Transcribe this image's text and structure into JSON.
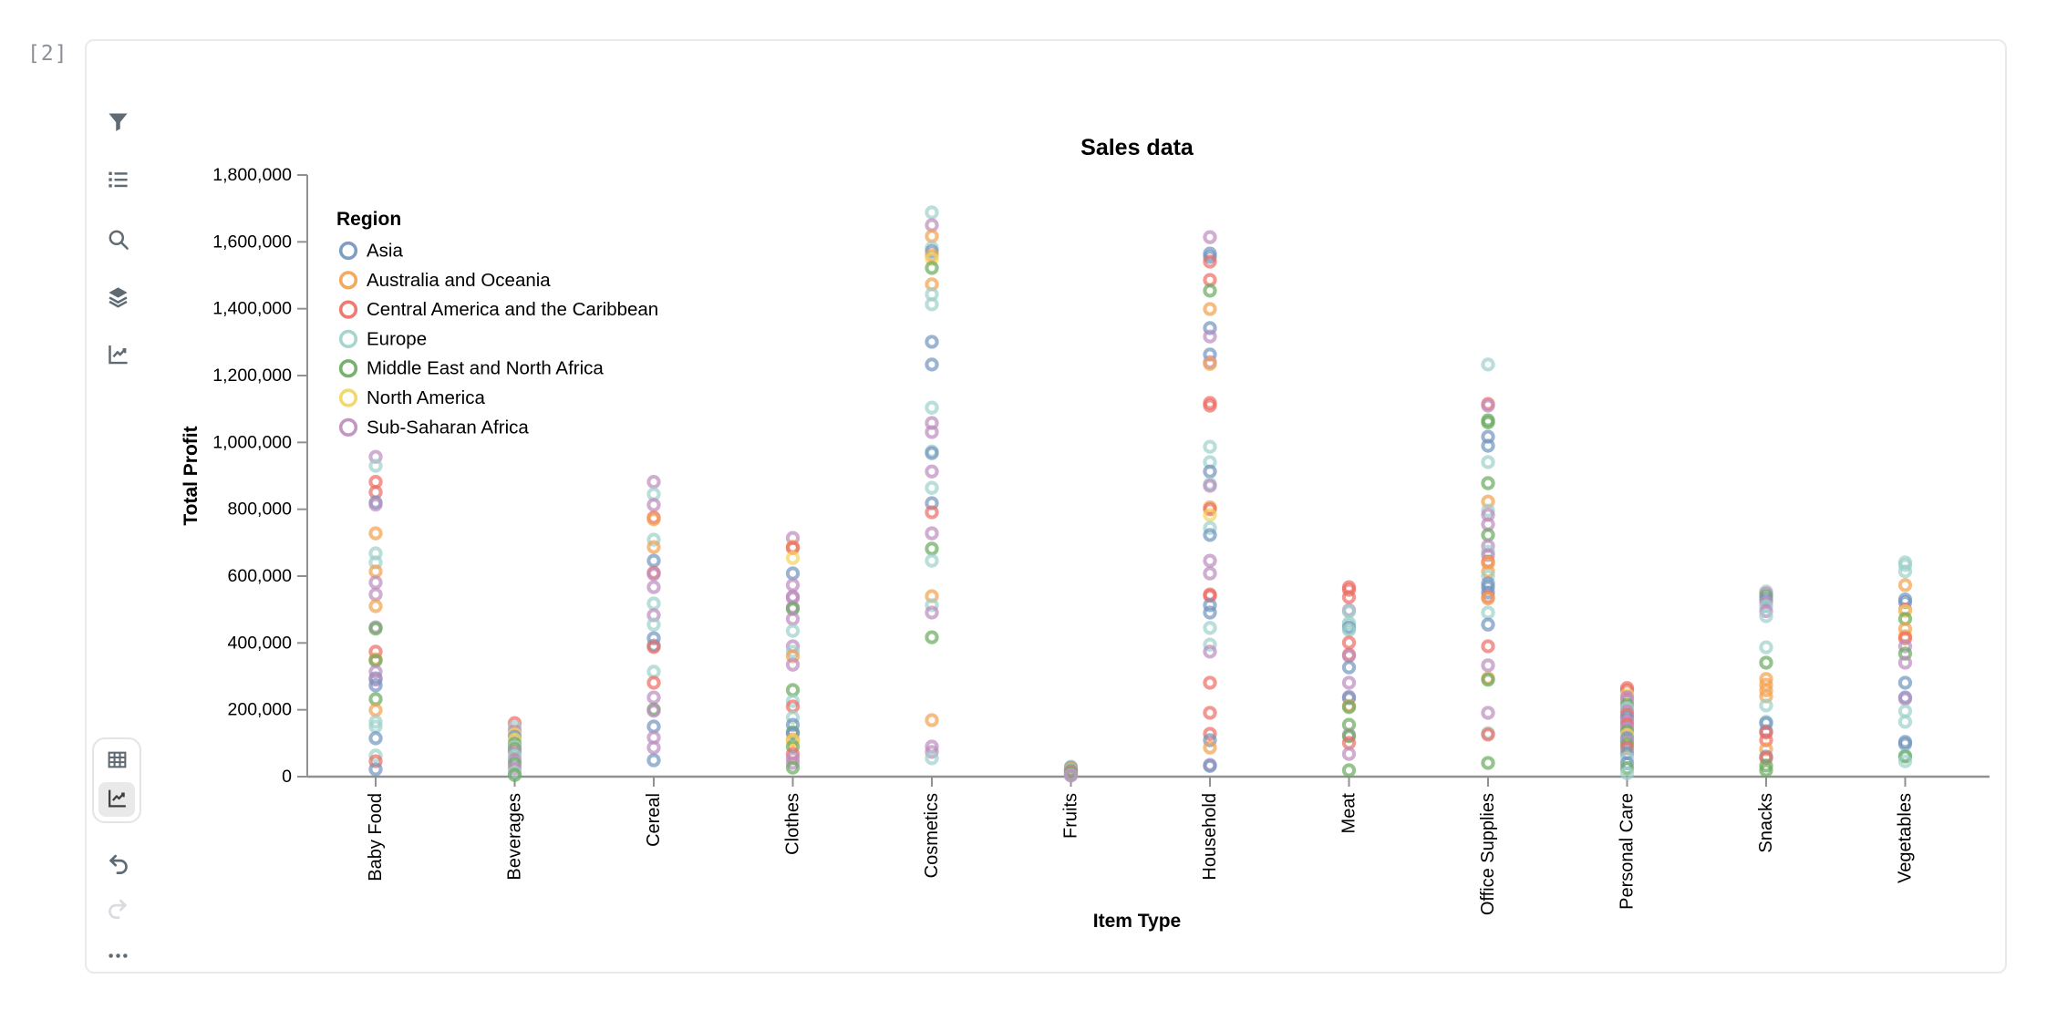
{
  "cell_label": "[2]",
  "colors": {
    "icon": "#5f6a72",
    "icon_disabled": "#d9dbde",
    "panel_border": "#e9eaec",
    "axis_line": "#919191",
    "text": "#000000",
    "selected_toggle_bg": "#e9e9ea"
  },
  "sidebar": {
    "top_icons": [
      {
        "name": "filter"
      },
      {
        "name": "field-list"
      },
      {
        "name": "search"
      },
      {
        "name": "layers"
      },
      {
        "name": "line-chart"
      }
    ],
    "view_toggle": [
      {
        "name": "table-view",
        "selected": false
      },
      {
        "name": "chart-view",
        "selected": true
      }
    ],
    "history": [
      {
        "name": "undo",
        "enabled": true
      },
      {
        "name": "redo",
        "enabled": false
      }
    ],
    "more": {
      "name": "more-options"
    }
  },
  "chart_data": {
    "type": "scatter",
    "title": "Sales data",
    "xlabel": "Item Type",
    "ylabel": "Total Profit",
    "legend_title": "Region",
    "legend_position": "upper-left-inside",
    "grid": false,
    "ylim": [
      0,
      1800000
    ],
    "ytick_step": 200000,
    "ytick_labels": [
      "0",
      "200,000",
      "400,000",
      "600,000",
      "800,000",
      "1,000,000",
      "1,200,000",
      "1,400,000",
      "1,600,000",
      "1,800,000"
    ],
    "categories": [
      "Baby Food",
      "Beverages",
      "Cereal",
      "Clothes",
      "Cosmetics",
      "Fruits",
      "Household",
      "Meat",
      "Office Supplies",
      "Personal Care",
      "Snacks",
      "Vegetables"
    ],
    "series": [
      {
        "name": "Asia",
        "color": "#7094be"
      },
      {
        "name": "Australia and Oceania",
        "color": "#f2a14f"
      },
      {
        "name": "Central America and the Caribbean",
        "color": "#ec6b63"
      },
      {
        "name": "Europe",
        "color": "#9dd0c9"
      },
      {
        "name": "Middle East and North Africa",
        "color": "#68a95e"
      },
      {
        "name": "North America",
        "color": "#f2d45c"
      },
      {
        "name": "Sub-Saharan Africa",
        "color": "#bb8cbd"
      }
    ],
    "point_format": "[total_profit, region_index]",
    "points": [
      [
        [
          957000,
          6
        ],
        [
          930000,
          3
        ],
        [
          882000,
          2
        ],
        [
          851000,
          2
        ],
        [
          820000,
          0
        ],
        [
          814000,
          6
        ],
        [
          728000,
          1
        ],
        [
          668000,
          3
        ],
        [
          641000,
          3
        ],
        [
          614000,
          1
        ],
        [
          581000,
          6
        ],
        [
          545000,
          6
        ],
        [
          510000,
          1
        ],
        [
          447000,
          6
        ],
        [
          443000,
          4
        ],
        [
          374000,
          2
        ],
        [
          351000,
          1
        ],
        [
          347000,
          4
        ],
        [
          314000,
          6
        ],
        [
          294000,
          0
        ],
        [
          290000,
          6
        ],
        [
          273000,
          0
        ],
        [
          232000,
          4
        ],
        [
          199000,
          1
        ],
        [
          164000,
          3
        ],
        [
          150000,
          3
        ],
        [
          115000,
          0
        ],
        [
          63000,
          3
        ],
        [
          46000,
          2
        ],
        [
          22000,
          0
        ]
      ],
      [
        [
          160000,
          2
        ],
        [
          148000,
          3
        ],
        [
          136000,
          6
        ],
        [
          127000,
          5
        ],
        [
          119000,
          0
        ],
        [
          111000,
          5
        ],
        [
          98000,
          4
        ],
        [
          90000,
          3
        ],
        [
          82000,
          4
        ],
        [
          74000,
          6
        ],
        [
          62000,
          3
        ],
        [
          50000,
          6
        ],
        [
          38000,
          4
        ],
        [
          25000,
          6
        ],
        [
          12000,
          3
        ],
        [
          5000,
          4
        ]
      ],
      [
        [
          882000,
          6
        ],
        [
          845000,
          3
        ],
        [
          813000,
          6
        ],
        [
          775000,
          2
        ],
        [
          770000,
          1
        ],
        [
          709000,
          3
        ],
        [
          687000,
          1
        ],
        [
          646000,
          0
        ],
        [
          610000,
          2
        ],
        [
          606000,
          6
        ],
        [
          567000,
          6
        ],
        [
          518000,
          3
        ],
        [
          483000,
          6
        ],
        [
          455000,
          3
        ],
        [
          414000,
          0
        ],
        [
          392000,
          0
        ],
        [
          388000,
          2
        ],
        [
          314000,
          3
        ],
        [
          281000,
          2
        ],
        [
          237000,
          6
        ],
        [
          201000,
          4
        ],
        [
          197000,
          6
        ],
        [
          150000,
          0
        ],
        [
          117000,
          6
        ],
        [
          87000,
          6
        ],
        [
          49000,
          0
        ]
      ],
      [
        [
          714000,
          6
        ],
        [
          688000,
          1
        ],
        [
          684000,
          2
        ],
        [
          654000,
          5
        ],
        [
          608000,
          0
        ],
        [
          573000,
          6
        ],
        [
          539000,
          6
        ],
        [
          535000,
          6
        ],
        [
          506000,
          6
        ],
        [
          502000,
          4
        ],
        [
          472000,
          6
        ],
        [
          436000,
          3
        ],
        [
          390000,
          6
        ],
        [
          374000,
          3
        ],
        [
          360000,
          1
        ],
        [
          335000,
          6
        ],
        [
          259000,
          4
        ],
        [
          226000,
          3
        ],
        [
          210000,
          2
        ],
        [
          177000,
          3
        ],
        [
          155000,
          0
        ],
        [
          133000,
          4
        ],
        [
          129000,
          0
        ],
        [
          111000,
          1
        ],
        [
          107000,
          5
        ],
        [
          90000,
          4
        ],
        [
          68000,
          2
        ],
        [
          55000,
          6
        ],
        [
          41000,
          6
        ],
        [
          27000,
          4
        ]
      ],
      [
        [
          1688000,
          3
        ],
        [
          1650000,
          6
        ],
        [
          1617000,
          1
        ],
        [
          1582000,
          3
        ],
        [
          1572000,
          0
        ],
        [
          1560000,
          1
        ],
        [
          1549000,
          5
        ],
        [
          1522000,
          4
        ],
        [
          1473000,
          1
        ],
        [
          1443000,
          3
        ],
        [
          1413000,
          3
        ],
        [
          1301000,
          0
        ],
        [
          1233000,
          0
        ],
        [
          1104000,
          3
        ],
        [
          1058000,
          6
        ],
        [
          1031000,
          6
        ],
        [
          973000,
          3
        ],
        [
          968000,
          0
        ],
        [
          913000,
          6
        ],
        [
          864000,
          3
        ],
        [
          818000,
          0
        ],
        [
          791000,
          2
        ],
        [
          728000,
          6
        ],
        [
          682000,
          4
        ],
        [
          646000,
          3
        ],
        [
          540000,
          1
        ],
        [
          513000,
          3
        ],
        [
          491000,
          6
        ],
        [
          417000,
          4
        ],
        [
          169000,
          1
        ],
        [
          90000,
          6
        ],
        [
          74000,
          6
        ],
        [
          55000,
          3
        ]
      ],
      [
        [
          30000,
          3
        ],
        [
          27000,
          0
        ],
        [
          24000,
          1
        ],
        [
          20000,
          3
        ],
        [
          17000,
          4
        ],
        [
          14000,
          6
        ],
        [
          11000,
          2
        ],
        [
          8000,
          4
        ],
        [
          5000,
          3
        ],
        [
          3000,
          6
        ]
      ],
      [
        [
          1614000,
          6
        ],
        [
          1565000,
          0
        ],
        [
          1555000,
          0
        ],
        [
          1541000,
          2
        ],
        [
          1486000,
          2
        ],
        [
          1454000,
          4
        ],
        [
          1399000,
          1
        ],
        [
          1342000,
          0
        ],
        [
          1317000,
          6
        ],
        [
          1263000,
          0
        ],
        [
          1240000,
          6
        ],
        [
          1235000,
          1
        ],
        [
          1118000,
          2
        ],
        [
          1110000,
          2
        ],
        [
          987000,
          3
        ],
        [
          941000,
          3
        ],
        [
          913000,
          0
        ],
        [
          875000,
          3
        ],
        [
          870000,
          6
        ],
        [
          806000,
          1
        ],
        [
          800000,
          2
        ],
        [
          783000,
          5
        ],
        [
          744000,
          3
        ],
        [
          723000,
          0
        ],
        [
          646000,
          6
        ],
        [
          608000,
          6
        ],
        [
          545000,
          2
        ],
        [
          541000,
          2
        ],
        [
          513000,
          0
        ],
        [
          491000,
          0
        ],
        [
          445000,
          3
        ],
        [
          395000,
          3
        ],
        [
          374000,
          6
        ],
        [
          281000,
          2
        ],
        [
          191000,
          2
        ],
        [
          128000,
          2
        ],
        [
          109000,
          0
        ],
        [
          87000,
          1
        ],
        [
          35000,
          6
        ],
        [
          32000,
          0
        ]
      ],
      [
        [
          567000,
          2
        ],
        [
          559000,
          2
        ],
        [
          537000,
          2
        ],
        [
          498000,
          6
        ],
        [
          494000,
          3
        ],
        [
          460000,
          3
        ],
        [
          452000,
          3
        ],
        [
          445000,
          0
        ],
        [
          438000,
          3
        ],
        [
          401000,
          2
        ],
        [
          365000,
          2
        ],
        [
          361000,
          6
        ],
        [
          327000,
          0
        ],
        [
          281000,
          6
        ],
        [
          239000,
          6
        ],
        [
          235000,
          0
        ],
        [
          212000,
          1
        ],
        [
          208000,
          4
        ],
        [
          155000,
          4
        ],
        [
          125000,
          6
        ],
        [
          121000,
          4
        ],
        [
          101000,
          2
        ],
        [
          68000,
          6
        ],
        [
          19000,
          4
        ]
      ],
      [
        [
          1233000,
          3
        ],
        [
          1115000,
          2
        ],
        [
          1110000,
          6
        ],
        [
          1066000,
          4
        ],
        [
          1060000,
          4
        ],
        [
          1017000,
          0
        ],
        [
          990000,
          0
        ],
        [
          941000,
          3
        ],
        [
          878000,
          4
        ],
        [
          823000,
          1
        ],
        [
          796000,
          3
        ],
        [
          783000,
          6
        ],
        [
          755000,
          6
        ],
        [
          723000,
          4
        ],
        [
          690000,
          6
        ],
        [
          673000,
          3
        ],
        [
          663000,
          6
        ],
        [
          643000,
          2
        ],
        [
          639000,
          1
        ],
        [
          614000,
          1
        ],
        [
          600000,
          3
        ],
        [
          578000,
          0
        ],
        [
          567000,
          0
        ],
        [
          551000,
          0
        ],
        [
          537000,
          2
        ],
        [
          533000,
          1
        ],
        [
          491000,
          3
        ],
        [
          455000,
          0
        ],
        [
          390000,
          2
        ],
        [
          333000,
          6
        ],
        [
          294000,
          1
        ],
        [
          290000,
          4
        ],
        [
          191000,
          6
        ],
        [
          130000,
          3
        ],
        [
          126000,
          2
        ],
        [
          41000,
          4
        ]
      ],
      [
        [
          265000,
          2
        ],
        [
          258000,
          2
        ],
        [
          245000,
          5
        ],
        [
          238000,
          6
        ],
        [
          228000,
          6
        ],
        [
          215000,
          4
        ],
        [
          205000,
          3
        ],
        [
          195000,
          6
        ],
        [
          185000,
          2
        ],
        [
          175000,
          0
        ],
        [
          165000,
          6
        ],
        [
          155000,
          2
        ],
        [
          145000,
          6
        ],
        [
          135000,
          4
        ],
        [
          125000,
          5
        ],
        [
          115000,
          0
        ],
        [
          105000,
          6
        ],
        [
          95000,
          4
        ],
        [
          85000,
          2
        ],
        [
          70000,
          0
        ],
        [
          55000,
          3
        ],
        [
          40000,
          0
        ],
        [
          25000,
          4
        ],
        [
          10000,
          3
        ]
      ],
      [
        [
          554000,
          3
        ],
        [
          548000,
          6
        ],
        [
          540000,
          4
        ],
        [
          530000,
          0
        ],
        [
          522000,
          6
        ],
        [
          510000,
          3
        ],
        [
          495000,
          6
        ],
        [
          480000,
          3
        ],
        [
          387000,
          3
        ],
        [
          341000,
          4
        ],
        [
          292000,
          1
        ],
        [
          275000,
          1
        ],
        [
          258000,
          1
        ],
        [
          240000,
          1
        ],
        [
          213000,
          3
        ],
        [
          164000,
          3
        ],
        [
          160000,
          0
        ],
        [
          136000,
          0
        ],
        [
          132000,
          2
        ],
        [
          109000,
          2
        ],
        [
          82000,
          1
        ],
        [
          60000,
          0
        ],
        [
          56000,
          2
        ],
        [
          33000,
          4
        ],
        [
          19000,
          4
        ]
      ],
      [
        [
          641000,
          3
        ],
        [
          633000,
          3
        ],
        [
          614000,
          3
        ],
        [
          573000,
          1
        ],
        [
          530000,
          0
        ],
        [
          522000,
          0
        ],
        [
          499000,
          2
        ],
        [
          495000,
          5
        ],
        [
          472000,
          4
        ],
        [
          442000,
          1
        ],
        [
          420000,
          1
        ],
        [
          414000,
          2
        ],
        [
          390000,
          6
        ],
        [
          368000,
          4
        ],
        [
          341000,
          6
        ],
        [
          281000,
          0
        ],
        [
          237000,
          0
        ],
        [
          233000,
          6
        ],
        [
          196000,
          3
        ],
        [
          164000,
          3
        ],
        [
          104000,
          0
        ],
        [
          98000,
          0
        ],
        [
          63000,
          3
        ],
        [
          60000,
          4
        ],
        [
          46000,
          3
        ]
      ]
    ]
  }
}
